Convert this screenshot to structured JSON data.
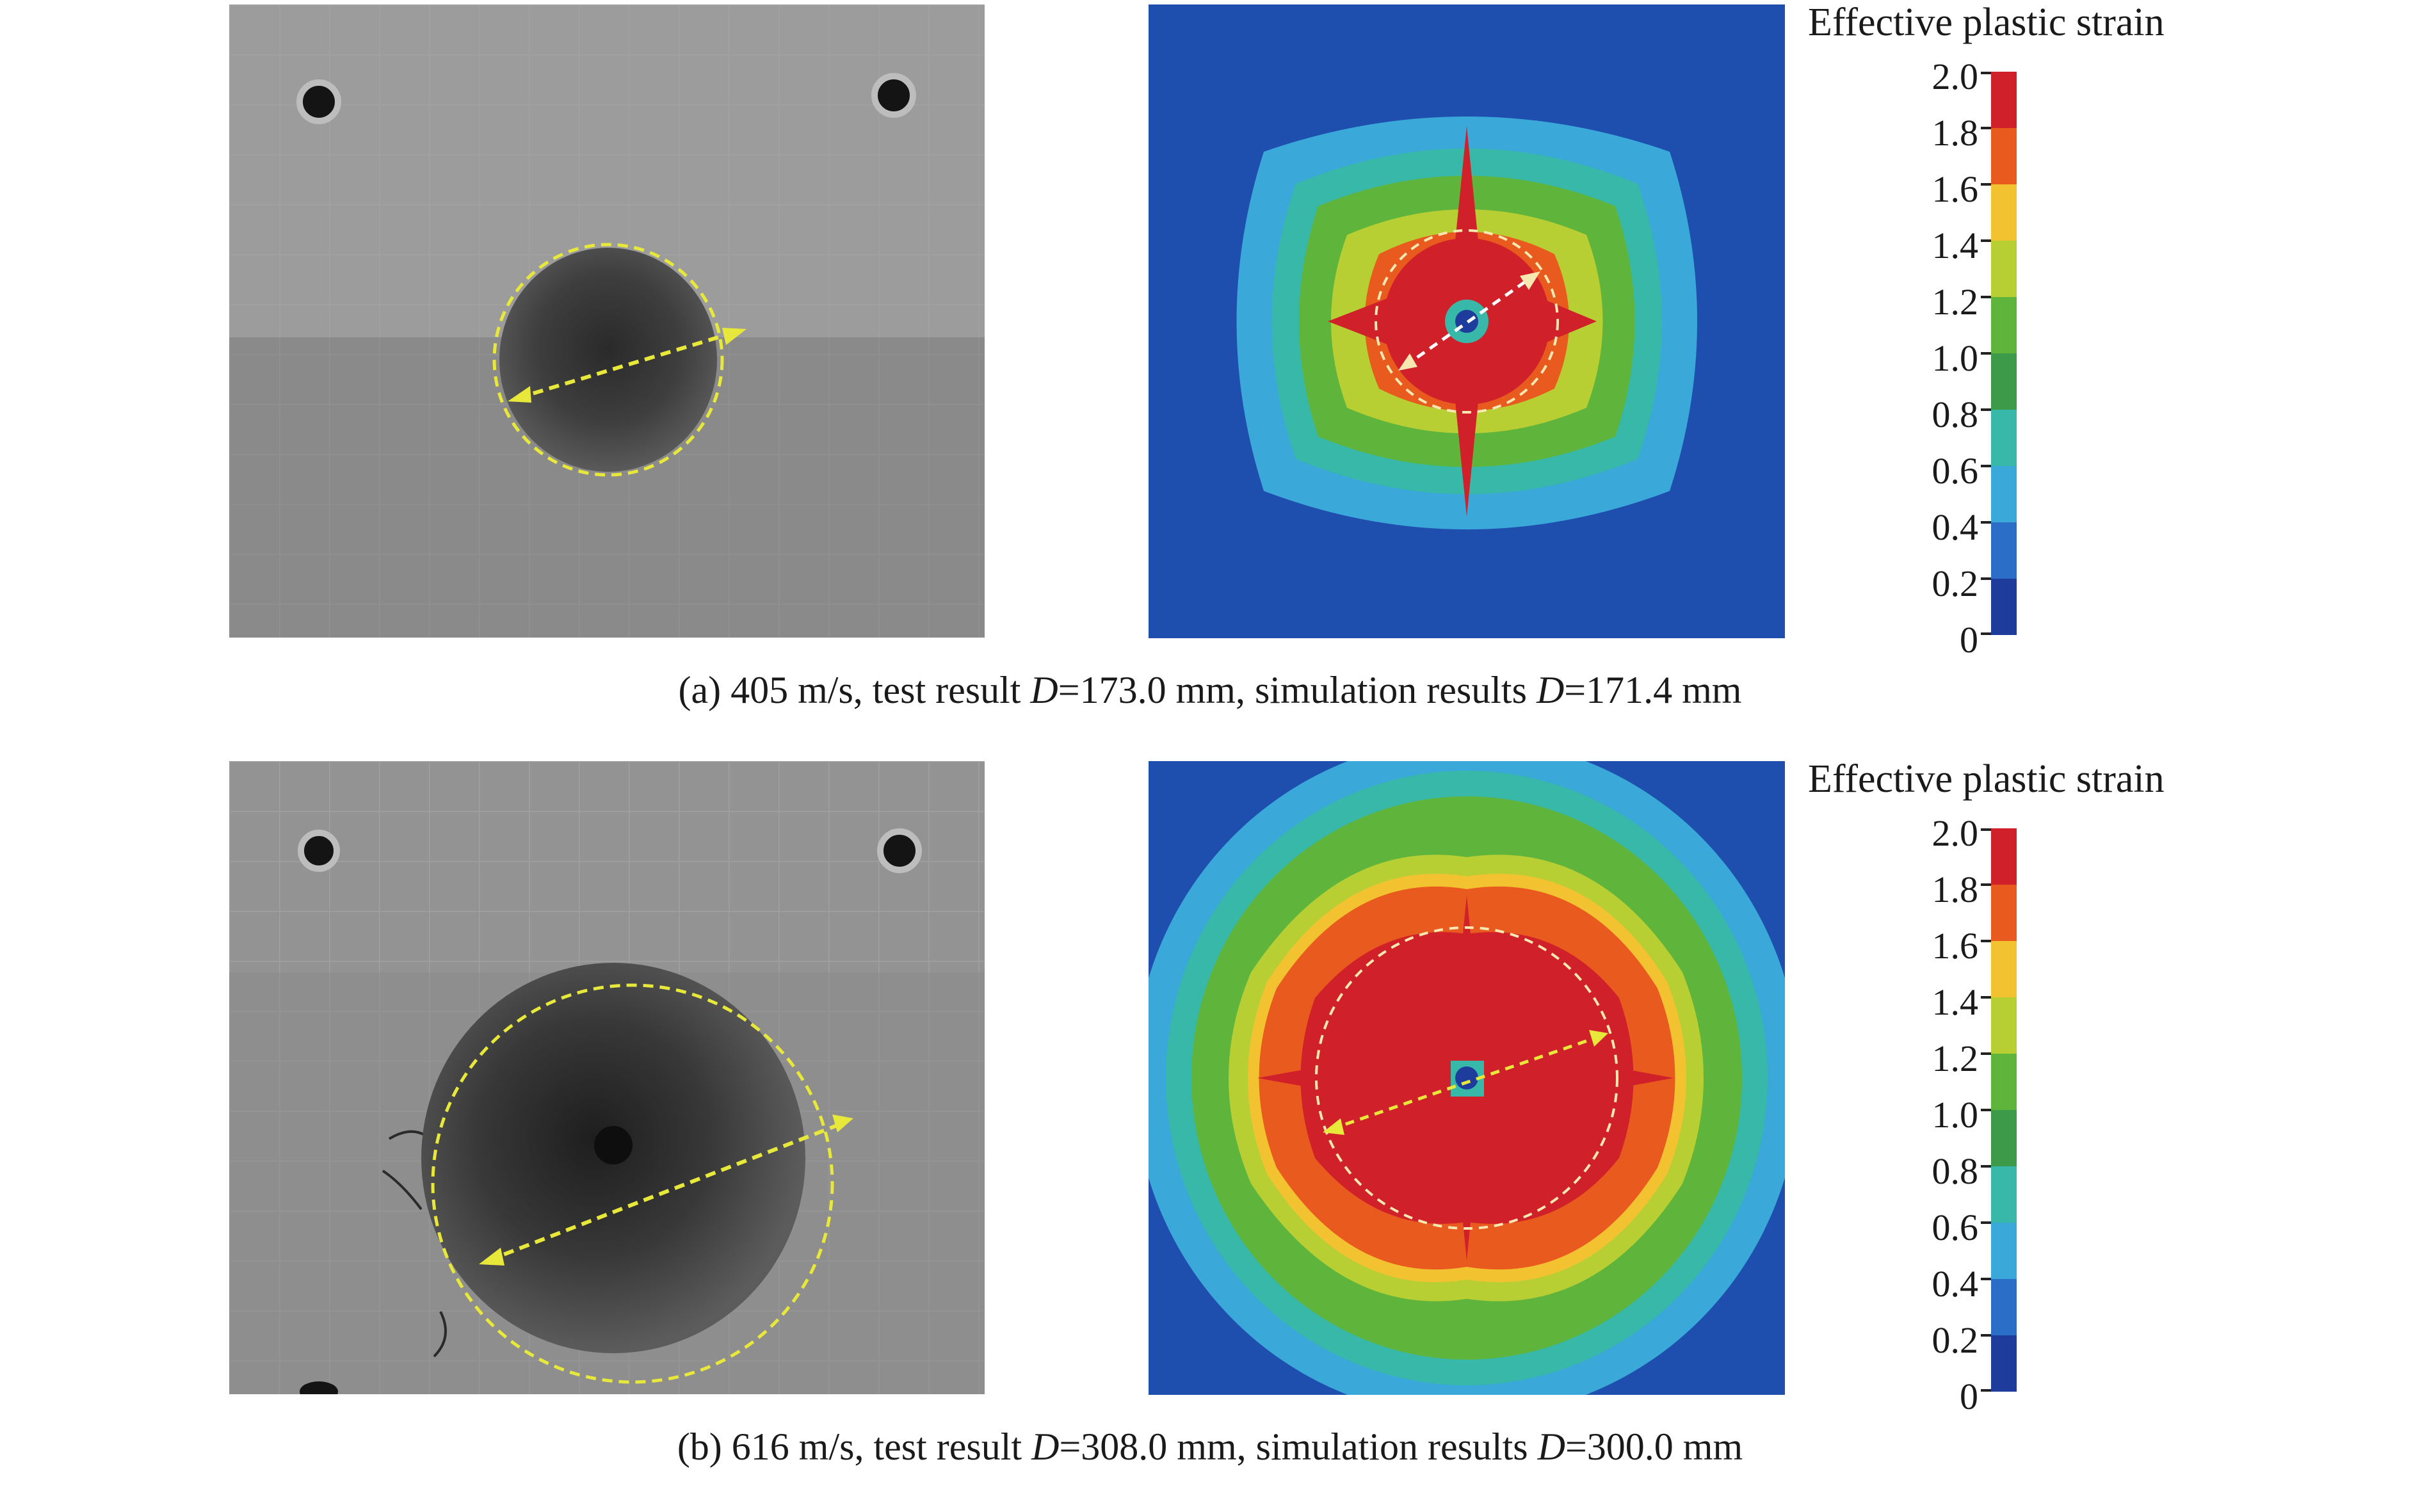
{
  "panels": [
    {
      "caption": {
        "prefix": "(a) 405 m/s, test result ",
        "d1_var": "D",
        "d1_val": "=173.0 mm, simulation results ",
        "d2_var": "D",
        "d2_val": "=171.4 mm"
      },
      "legend": {
        "title": "Effective plastic strain",
        "ticks": [
          "2.0",
          "1.8",
          "1.6",
          "1.4",
          "1.2",
          "1.0",
          "0.8",
          "0.6",
          "0.4",
          "0.2",
          "0"
        ]
      }
    },
    {
      "caption": {
        "prefix": "(b) 616 m/s, test result ",
        "d1_var": "D",
        "d1_val": "=308.0 mm, simulation results ",
        "d2_var": "D",
        "d2_val": "=300.0 mm"
      },
      "legend": {
        "title": "Effective plastic strain",
        "ticks": [
          "2.0",
          "1.8",
          "1.6",
          "1.4",
          "1.2",
          "1.0",
          "0.8",
          "0.6",
          "0.4",
          "0.2",
          "0"
        ]
      }
    }
  ],
  "colors": {
    "scale": [
      "#d0202a",
      "#e85a1e",
      "#f2c230",
      "#b8cf34",
      "#5fb43c",
      "#3c9a48",
      "#38b8a8",
      "#3aa8d8",
      "#2a6ec8",
      "#1e3c9c"
    ],
    "marker": "#e8e83a",
    "plate": "#8a8a8a"
  }
}
